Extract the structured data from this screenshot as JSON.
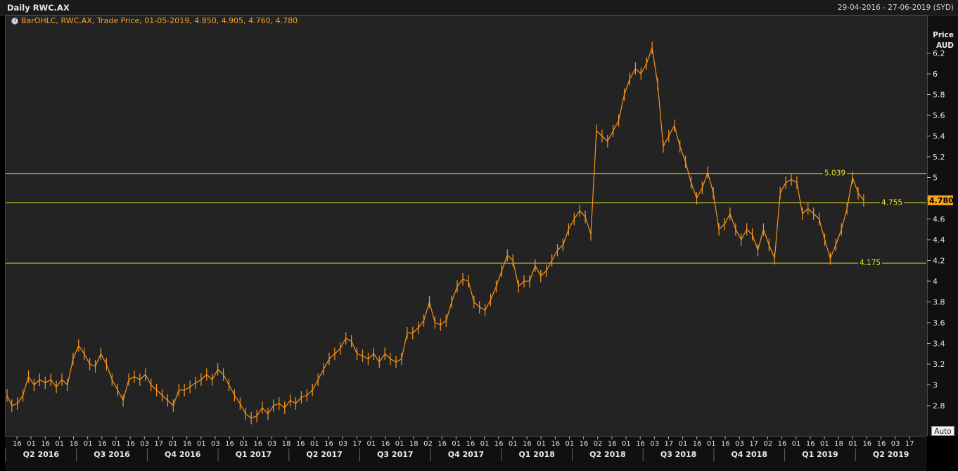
{
  "header": {
    "title": "Daily RWC.AX",
    "date_range": "29-04-2016 - 27-06-2019 (SYD)"
  },
  "legend": {
    "text": "BarOHLC, RWC.AX, Trade Price, 01-05-2019, 4.850, 4.905, 4.760, 4.780"
  },
  "axis": {
    "title_line1": "Price",
    "title_line2": "AUD",
    "auto_label": "Auto"
  },
  "colors": {
    "series": "#f7941d",
    "hlines": "#e5e02a",
    "last_price_tag": "#f7a21b"
  },
  "chart_data": {
    "type": "line",
    "y_axis": {
      "min": 2.6,
      "max": 6.45,
      "ticks": [
        2.8,
        3,
        3.2,
        3.4,
        3.6,
        3.8,
        4,
        4.2,
        4.4,
        4.6,
        4.8,
        5,
        5.2,
        5.4,
        5.6,
        5.8,
        6,
        6.2
      ],
      "tick_labels": [
        "2.8",
        "3",
        "3.2",
        "3.4",
        "3.6",
        "3.8",
        "4",
        "4.2",
        "4.4",
        "4.6",
        "4.8",
        "5",
        "5.2",
        "5.4",
        "5.6",
        "5.8",
        "6",
        "6.2"
      ]
    },
    "last_price": 4.78,
    "last_price_label": "4.780",
    "horizontal_lines": [
      {
        "value": 5.039,
        "label": "5.039"
      },
      {
        "value": 4.755,
        "label": "4.755"
      },
      {
        "value": 4.175,
        "label": "4.175"
      }
    ],
    "quarter_labels": [
      "Q2 2016",
      "Q3 2016",
      "Q4 2016",
      "Q1 2017",
      "Q2 2017",
      "Q3 2017",
      "Q4 2017",
      "Q1 2018",
      "Q2 2018",
      "Q3 2018",
      "Q4 2018",
      "Q1 2019",
      "Q2 2019"
    ],
    "day_ticks": [
      "16",
      "01",
      "16",
      "01",
      "18",
      "01",
      "16",
      "01",
      "16",
      "03",
      "17",
      "01",
      "16",
      "01",
      "03",
      "16",
      "01",
      "16",
      "03",
      "18",
      "16",
      "01",
      "16",
      "03",
      "17",
      "01",
      "16",
      "01",
      "18",
      "02",
      "16",
      "01",
      "16",
      "01",
      "16",
      "01",
      "16",
      "01",
      "16",
      "01",
      "16",
      "02",
      "16",
      "01",
      "16",
      "03",
      "17",
      "01",
      "16",
      "01",
      "16",
      "03",
      "17",
      "02",
      "16",
      "01",
      "16",
      "01",
      "18",
      "01",
      "16",
      "16",
      "03",
      "17"
    ],
    "series": [
      {
        "name": "RWC.AX",
        "points": [
          [
            "2016-04-29",
            2.9
          ],
          [
            "2016-05-05",
            2.8
          ],
          [
            "2016-05-12",
            2.82
          ],
          [
            "2016-05-19",
            2.9
          ],
          [
            "2016-05-26",
            3.08
          ],
          [
            "2016-06-02",
            3.0
          ],
          [
            "2016-06-09",
            3.05
          ],
          [
            "2016-06-16",
            3.02
          ],
          [
            "2016-06-23",
            3.05
          ],
          [
            "2016-06-30",
            2.98
          ],
          [
            "2016-07-07",
            3.05
          ],
          [
            "2016-07-14",
            3.0
          ],
          [
            "2016-07-21",
            3.25
          ],
          [
            "2016-07-28",
            3.38
          ],
          [
            "2016-08-04",
            3.3
          ],
          [
            "2016-08-11",
            3.2
          ],
          [
            "2016-08-18",
            3.18
          ],
          [
            "2016-08-25",
            3.3
          ],
          [
            "2016-09-01",
            3.2
          ],
          [
            "2016-09-08",
            3.05
          ],
          [
            "2016-09-15",
            2.95
          ],
          [
            "2016-09-22",
            2.85
          ],
          [
            "2016-09-29",
            3.05
          ],
          [
            "2016-10-06",
            3.08
          ],
          [
            "2016-10-13",
            3.05
          ],
          [
            "2016-10-20",
            3.1
          ],
          [
            "2016-10-27",
            3.0
          ],
          [
            "2016-11-03",
            2.95
          ],
          [
            "2016-11-10",
            2.9
          ],
          [
            "2016-11-17",
            2.85
          ],
          [
            "2016-11-24",
            2.8
          ],
          [
            "2016-12-01",
            2.95
          ],
          [
            "2016-12-08",
            2.95
          ],
          [
            "2016-12-15",
            2.98
          ],
          [
            "2016-12-22",
            3.02
          ],
          [
            "2016-12-29",
            3.05
          ],
          [
            "2017-01-05",
            3.1
          ],
          [
            "2017-01-12",
            3.05
          ],
          [
            "2017-01-19",
            3.15
          ],
          [
            "2017-01-26",
            3.1
          ],
          [
            "2017-02-02",
            3.0
          ],
          [
            "2017-02-09",
            2.9
          ],
          [
            "2017-02-16",
            2.82
          ],
          [
            "2017-02-23",
            2.72
          ],
          [
            "2017-03-02",
            2.68
          ],
          [
            "2017-03-09",
            2.7
          ],
          [
            "2017-03-16",
            2.78
          ],
          [
            "2017-03-23",
            2.72
          ],
          [
            "2017-03-30",
            2.8
          ],
          [
            "2017-04-06",
            2.82
          ],
          [
            "2017-04-13",
            2.78
          ],
          [
            "2017-04-20",
            2.85
          ],
          [
            "2017-04-27",
            2.82
          ],
          [
            "2017-05-04",
            2.88
          ],
          [
            "2017-05-11",
            2.9
          ],
          [
            "2017-05-18",
            2.95
          ],
          [
            "2017-05-25",
            3.05
          ],
          [
            "2017-06-01",
            3.15
          ],
          [
            "2017-06-08",
            3.25
          ],
          [
            "2017-06-15",
            3.3
          ],
          [
            "2017-06-22",
            3.35
          ],
          [
            "2017-06-29",
            3.45
          ],
          [
            "2017-07-06",
            3.42
          ],
          [
            "2017-07-13",
            3.3
          ],
          [
            "2017-07-20",
            3.28
          ],
          [
            "2017-07-27",
            3.25
          ],
          [
            "2017-08-03",
            3.3
          ],
          [
            "2017-08-10",
            3.22
          ],
          [
            "2017-08-17",
            3.3
          ],
          [
            "2017-08-24",
            3.25
          ],
          [
            "2017-08-31",
            3.22
          ],
          [
            "2017-09-07",
            3.25
          ],
          [
            "2017-09-14",
            3.5
          ],
          [
            "2017-09-21",
            3.5
          ],
          [
            "2017-09-28",
            3.55
          ],
          [
            "2017-10-05",
            3.62
          ],
          [
            "2017-10-12",
            3.8
          ],
          [
            "2017-10-19",
            3.6
          ],
          [
            "2017-10-26",
            3.58
          ],
          [
            "2017-11-02",
            3.62
          ],
          [
            "2017-11-09",
            3.8
          ],
          [
            "2017-11-16",
            3.95
          ],
          [
            "2017-11-23",
            4.02
          ],
          [
            "2017-11-30",
            4.0
          ],
          [
            "2017-12-07",
            3.8
          ],
          [
            "2017-12-14",
            3.75
          ],
          [
            "2017-12-21",
            3.72
          ],
          [
            "2017-12-28",
            3.82
          ],
          [
            "2018-01-04",
            3.95
          ],
          [
            "2018-01-11",
            4.1
          ],
          [
            "2018-01-18",
            4.25
          ],
          [
            "2018-01-25",
            4.2
          ],
          [
            "2018-02-01",
            3.95
          ],
          [
            "2018-02-08",
            4.0
          ],
          [
            "2018-02-15",
            4.0
          ],
          [
            "2018-02-22",
            4.15
          ],
          [
            "2018-03-01",
            4.05
          ],
          [
            "2018-03-08",
            4.1
          ],
          [
            "2018-03-15",
            4.2
          ],
          [
            "2018-03-22",
            4.3
          ],
          [
            "2018-03-29",
            4.35
          ],
          [
            "2018-04-05",
            4.5
          ],
          [
            "2018-04-12",
            4.6
          ],
          [
            "2018-04-19",
            4.68
          ],
          [
            "2018-04-26",
            4.62
          ],
          [
            "2018-05-03",
            4.45
          ],
          [
            "2018-05-10",
            5.45
          ],
          [
            "2018-05-17",
            5.4
          ],
          [
            "2018-05-24",
            5.35
          ],
          [
            "2018-05-31",
            5.45
          ],
          [
            "2018-06-07",
            5.55
          ],
          [
            "2018-06-14",
            5.8
          ],
          [
            "2018-06-21",
            5.95
          ],
          [
            "2018-06-28",
            6.05
          ],
          [
            "2018-07-05",
            6.0
          ],
          [
            "2018-07-12",
            6.1
          ],
          [
            "2018-07-19",
            6.25
          ],
          [
            "2018-07-26",
            5.9
          ],
          [
            "2018-08-02",
            5.3
          ],
          [
            "2018-08-09",
            5.4
          ],
          [
            "2018-08-16",
            5.5
          ],
          [
            "2018-08-23",
            5.3
          ],
          [
            "2018-08-30",
            5.15
          ],
          [
            "2018-09-06",
            4.95
          ],
          [
            "2018-09-13",
            4.8
          ],
          [
            "2018-09-20",
            4.9
          ],
          [
            "2018-09-27",
            5.05
          ],
          [
            "2018-10-04",
            4.85
          ],
          [
            "2018-10-11",
            4.5
          ],
          [
            "2018-10-18",
            4.55
          ],
          [
            "2018-10-25",
            4.65
          ],
          [
            "2018-11-01",
            4.5
          ],
          [
            "2018-11-08",
            4.4
          ],
          [
            "2018-11-15",
            4.5
          ],
          [
            "2018-11-22",
            4.45
          ],
          [
            "2018-11-29",
            4.3
          ],
          [
            "2018-12-06",
            4.5
          ],
          [
            "2018-12-13",
            4.35
          ],
          [
            "2018-12-20",
            4.22
          ],
          [
            "2018-12-27",
            4.85
          ],
          [
            "2019-01-03",
            4.95
          ],
          [
            "2019-01-10",
            4.98
          ],
          [
            "2019-01-17",
            4.95
          ],
          [
            "2019-01-24",
            4.65
          ],
          [
            "2019-01-31",
            4.7
          ],
          [
            "2019-02-07",
            4.65
          ],
          [
            "2019-02-14",
            4.6
          ],
          [
            "2019-02-21",
            4.4
          ],
          [
            "2019-02-28",
            4.22
          ],
          [
            "2019-03-07",
            4.35
          ],
          [
            "2019-03-14",
            4.5
          ],
          [
            "2019-03-21",
            4.7
          ],
          [
            "2019-03-28",
            5.0
          ],
          [
            "2019-04-04",
            4.85
          ],
          [
            "2019-04-11",
            4.78
          ]
        ]
      }
    ]
  }
}
